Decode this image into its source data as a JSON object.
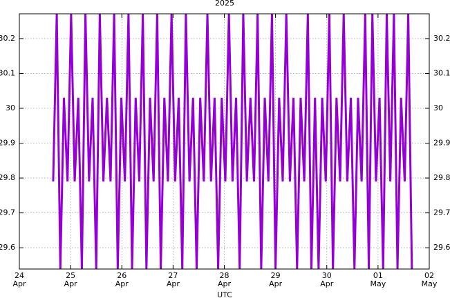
{
  "chart_data": {
    "type": "line",
    "title": "2025",
    "x_label": "UTC",
    "x": [
      24.66,
      24.73,
      24.8,
      24.87,
      24.94,
      25.01,
      25.08,
      25.15,
      25.22,
      25.29,
      25.36,
      25.43,
      25.5,
      25.57,
      25.64,
      25.71,
      25.78,
      25.85,
      25.92,
      25.99,
      26.06,
      26.13,
      26.2,
      26.27,
      26.34,
      26.41,
      26.48,
      26.55,
      26.62,
      26.69,
      26.76,
      26.83,
      26.9,
      26.97,
      27.04,
      27.11,
      27.18,
      27.25,
      27.32,
      27.39,
      27.46,
      27.53,
      27.6,
      27.67,
      27.74,
      27.81,
      27.88,
      27.95,
      28.02,
      28.09,
      28.16,
      28.23,
      28.3,
      28.37,
      28.44,
      28.51,
      28.58,
      28.65,
      28.72,
      28.79,
      28.86,
      28.93,
      29.0,
      29.07,
      29.14,
      29.21,
      29.28,
      29.35,
      29.42,
      29.49,
      29.56,
      29.63,
      29.7,
      29.77,
      29.84,
      29.91,
      29.98,
      30.05,
      30.12,
      30.19,
      30.26,
      30.33,
      30.4,
      30.47,
      30.54,
      30.61,
      30.68,
      30.75,
      30.82,
      30.89,
      30.96,
      31.03,
      31.1,
      31.17,
      31.24,
      31.31,
      31.38,
      31.45,
      31.52,
      31.59,
      31.66
    ],
    "series": [
      {
        "color": "#9400d3",
        "values": [
          29.79,
          30.27,
          29.54,
          30.03,
          29.79,
          30.27,
          29.79,
          30.03,
          29.54,
          30.27,
          29.79,
          30.03,
          29.54,
          30.27,
          29.79,
          30.03,
          29.79,
          30.27,
          29.54,
          30.03,
          29.79,
          30.27,
          29.54,
          30.03,
          29.79,
          30.27,
          29.54,
          30.03,
          29.79,
          30.27,
          29.54,
          30.03,
          29.79,
          30.27,
          29.79,
          30.03,
          29.54,
          30.27,
          29.79,
          30.03,
          29.54,
          30.03,
          29.79,
          30.27,
          29.79,
          30.03,
          29.54,
          30.03,
          29.79,
          30.27,
          29.79,
          30.03,
          29.54,
          30.27,
          29.79,
          30.03,
          29.79,
          30.27,
          29.54,
          30.03,
          29.79,
          30.27,
          29.54,
          30.03,
          29.79,
          30.27,
          29.79,
          30.03,
          29.54,
          30.03,
          29.79,
          30.27,
          29.54,
          30.03,
          29.54,
          30.03,
          29.79,
          30.27,
          29.54,
          30.03,
          29.79,
          30.27,
          29.79,
          30.03,
          29.54,
          30.03,
          29.79,
          30.27,
          29.54,
          30.27,
          29.79,
          30.03,
          29.54,
          30.27,
          29.79,
          30.27,
          29.54,
          30.03,
          29.79,
          30.27,
          29.54
        ]
      }
    ],
    "xlim": [
      24,
      32
    ],
    "xticks": [
      {
        "value": 24,
        "label": "24\nApr"
      },
      {
        "value": 25,
        "label": "25\nApr"
      },
      {
        "value": 26,
        "label": "26\nApr"
      },
      {
        "value": 27,
        "label": "27\nApr"
      },
      {
        "value": 28,
        "label": "28\nApr"
      },
      {
        "value": 29,
        "label": "29\nApr"
      },
      {
        "value": 30,
        "label": "30\nApr"
      },
      {
        "value": 31,
        "label": "01\nMay"
      },
      {
        "value": 32,
        "label": "02\nMay"
      }
    ],
    "ylim": [
      29.539,
      30.271
    ],
    "yticks": [
      29.6,
      29.7,
      29.8,
      29.9,
      30,
      30.1,
      30.2
    ],
    "grid": true
  }
}
